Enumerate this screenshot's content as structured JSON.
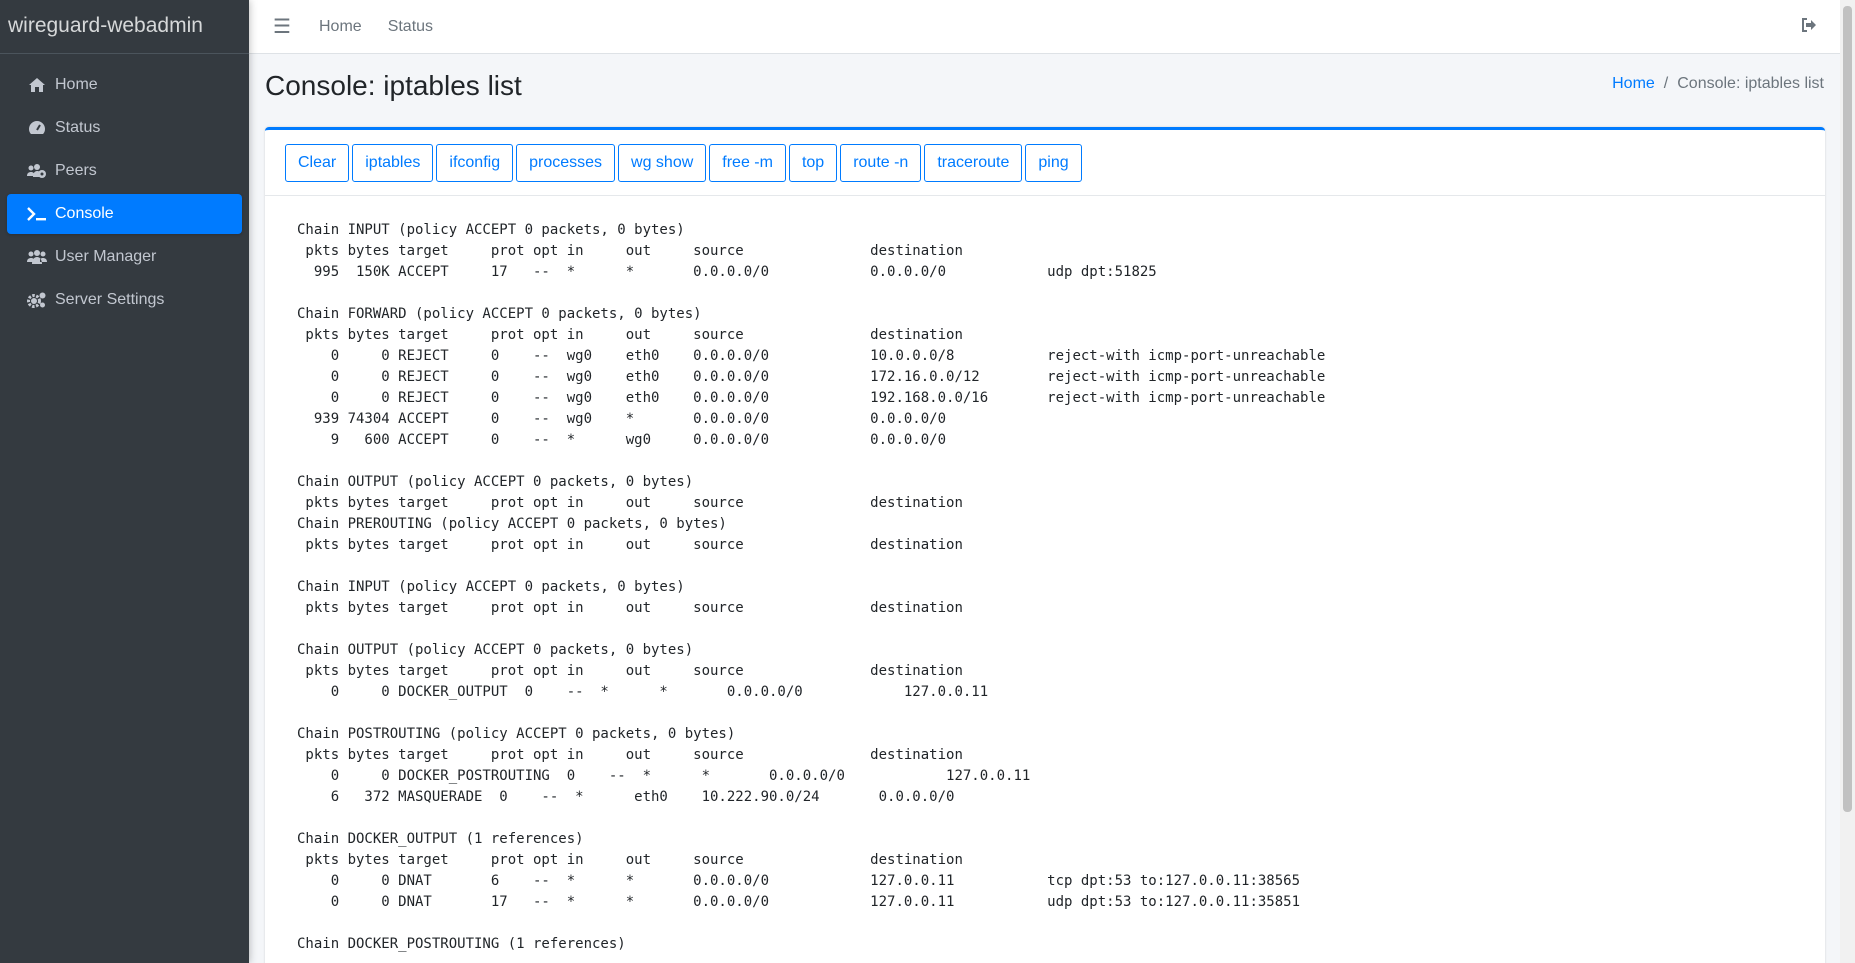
{
  "brand": "wireguard-webadmin",
  "sidebar": {
    "items": [
      {
        "label": "Home",
        "icon": "home-icon"
      },
      {
        "label": "Status",
        "icon": "tachometer-icon"
      },
      {
        "label": "Peers",
        "icon": "users-cog-icon"
      },
      {
        "label": "Console",
        "icon": "terminal-icon",
        "active": true
      },
      {
        "label": "User Manager",
        "icon": "users-icon"
      },
      {
        "label": "Server Settings",
        "icon": "cogs-icon"
      }
    ]
  },
  "topbar": {
    "links": [
      "Home",
      "Status"
    ],
    "menu_icon": "hamburger-icon",
    "logout_icon": "sign-out-icon"
  },
  "page": {
    "title": "Console: iptables list"
  },
  "breadcrumb": {
    "home": "Home",
    "current": "Console: iptables list"
  },
  "colors": {
    "accent": "#007bff",
    "sidebar": "#343a40"
  },
  "buttons": [
    "Clear",
    "iptables",
    "ifconfig",
    "processes",
    "wg show",
    "free -m",
    "top",
    "route -n",
    "traceroute",
    "ping"
  ],
  "console_lines": [
    "Chain INPUT (policy ACCEPT 0 packets, 0 bytes)",
    " pkts bytes target     prot opt in     out     source               destination",
    "  995  150K ACCEPT     17   --  *      *       0.0.0.0/0            0.0.0.0/0            udp dpt:51825",
    "",
    "Chain FORWARD (policy ACCEPT 0 packets, 0 bytes)",
    " pkts bytes target     prot opt in     out     source               destination",
    "    0     0 REJECT     0    --  wg0    eth0    0.0.0.0/0            10.0.0.0/8           reject-with icmp-port-unreachable",
    "    0     0 REJECT     0    --  wg0    eth0    0.0.0.0/0            172.16.0.0/12        reject-with icmp-port-unreachable",
    "    0     0 REJECT     0    --  wg0    eth0    0.0.0.0/0            192.168.0.0/16       reject-with icmp-port-unreachable",
    "  939 74304 ACCEPT     0    --  wg0    *       0.0.0.0/0            0.0.0.0/0",
    "    9   600 ACCEPT     0    --  *      wg0     0.0.0.0/0            0.0.0.0/0",
    "",
    "Chain OUTPUT (policy ACCEPT 0 packets, 0 bytes)",
    " pkts bytes target     prot opt in     out     source               destination",
    "Chain PREROUTING (policy ACCEPT 0 packets, 0 bytes)",
    " pkts bytes target     prot opt in     out     source               destination",
    "",
    "Chain INPUT (policy ACCEPT 0 packets, 0 bytes)",
    " pkts bytes target     prot opt in     out     source               destination",
    "",
    "Chain OUTPUT (policy ACCEPT 0 packets, 0 bytes)",
    " pkts bytes target     prot opt in     out     source               destination",
    "    0     0 DOCKER_OUTPUT  0    --  *      *       0.0.0.0/0            127.0.0.11",
    "",
    "Chain POSTROUTING (policy ACCEPT 0 packets, 0 bytes)",
    " pkts bytes target     prot opt in     out     source               destination",
    "    0     0 DOCKER_POSTROUTING  0    --  *      *       0.0.0.0/0            127.0.0.11",
    "    6   372 MASQUERADE  0    --  *      eth0    10.222.90.0/24       0.0.0.0/0",
    "",
    "Chain DOCKER_OUTPUT (1 references)",
    " pkts bytes target     prot opt in     out     source               destination",
    "    0     0 DNAT       6    --  *      *       0.0.0.0/0            127.0.0.11           tcp dpt:53 to:127.0.0.11:38565",
    "    0     0 DNAT       17   --  *      *       0.0.0.0/0            127.0.0.11           udp dpt:53 to:127.0.0.11:35851",
    "",
    "Chain DOCKER_POSTROUTING (1 references)"
  ]
}
